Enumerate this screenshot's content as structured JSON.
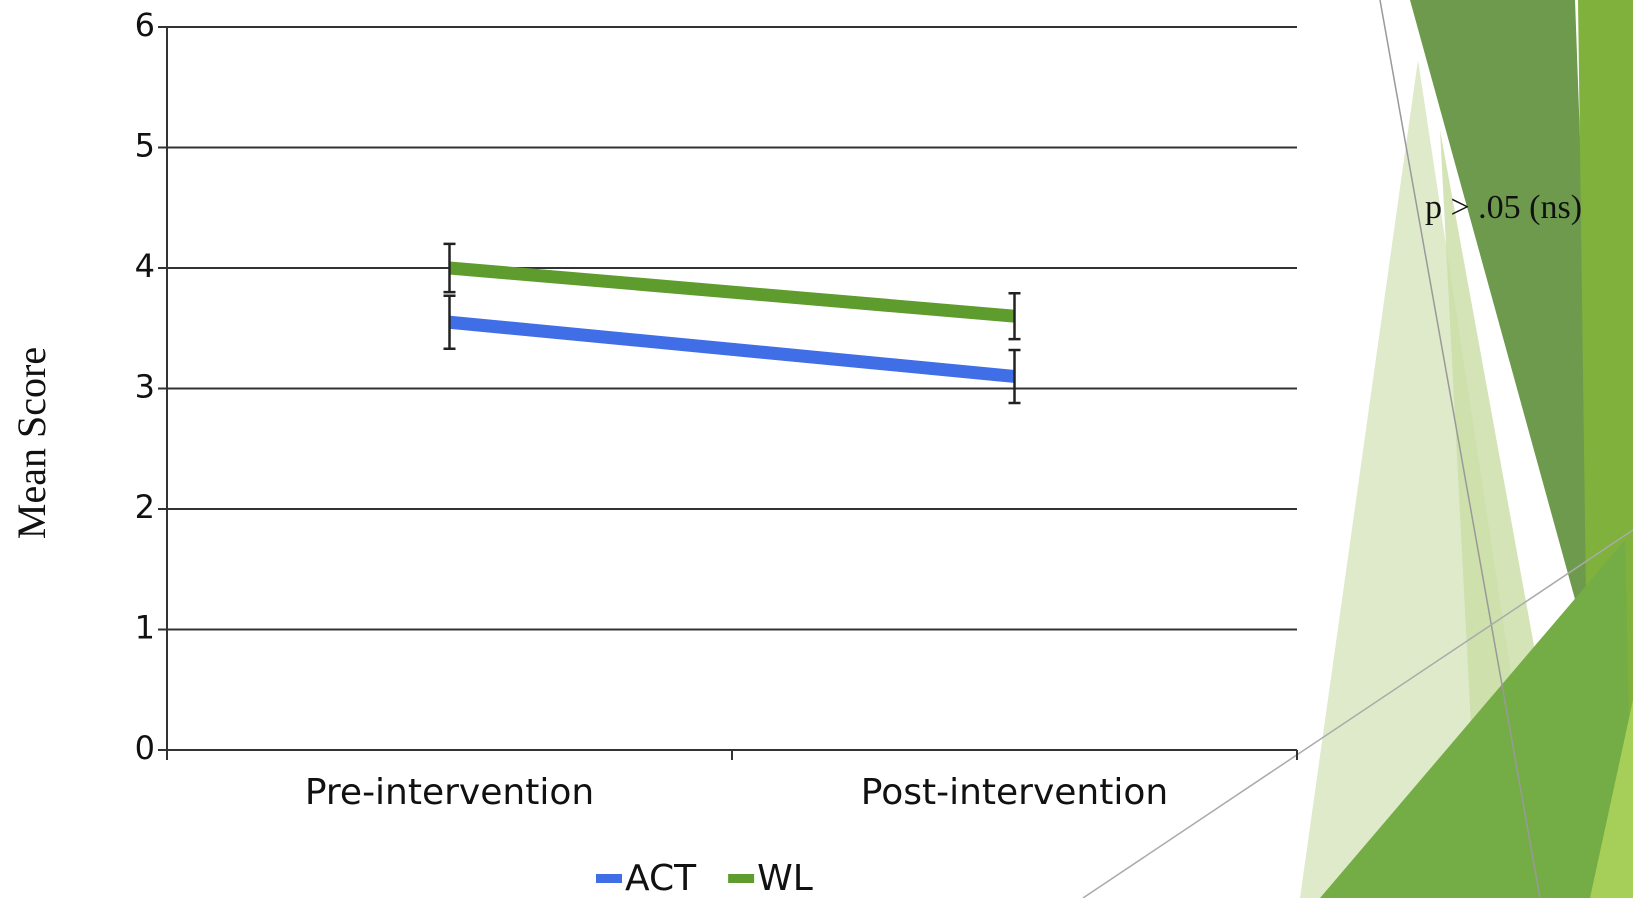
{
  "chart_data": {
    "type": "line",
    "y_label": "Mean Score",
    "annotation": "p > .05 (ns)",
    "categories": [
      "Pre-intervention",
      "Post-intervention"
    ],
    "series": [
      {
        "name": "ACT",
        "color": "#3f6ee6",
        "values": [
          3.55,
          3.1
        ],
        "errors": [
          0.22,
          0.22
        ]
      },
      {
        "name": "WL",
        "color": "#5e9c2e",
        "values": [
          4.0,
          3.6
        ],
        "errors": [
          0.2,
          0.19
        ]
      }
    ],
    "ylim": [
      0,
      6
    ],
    "yticks": [
      0,
      1,
      2,
      3,
      4,
      5,
      6
    ],
    "grid": true
  }
}
